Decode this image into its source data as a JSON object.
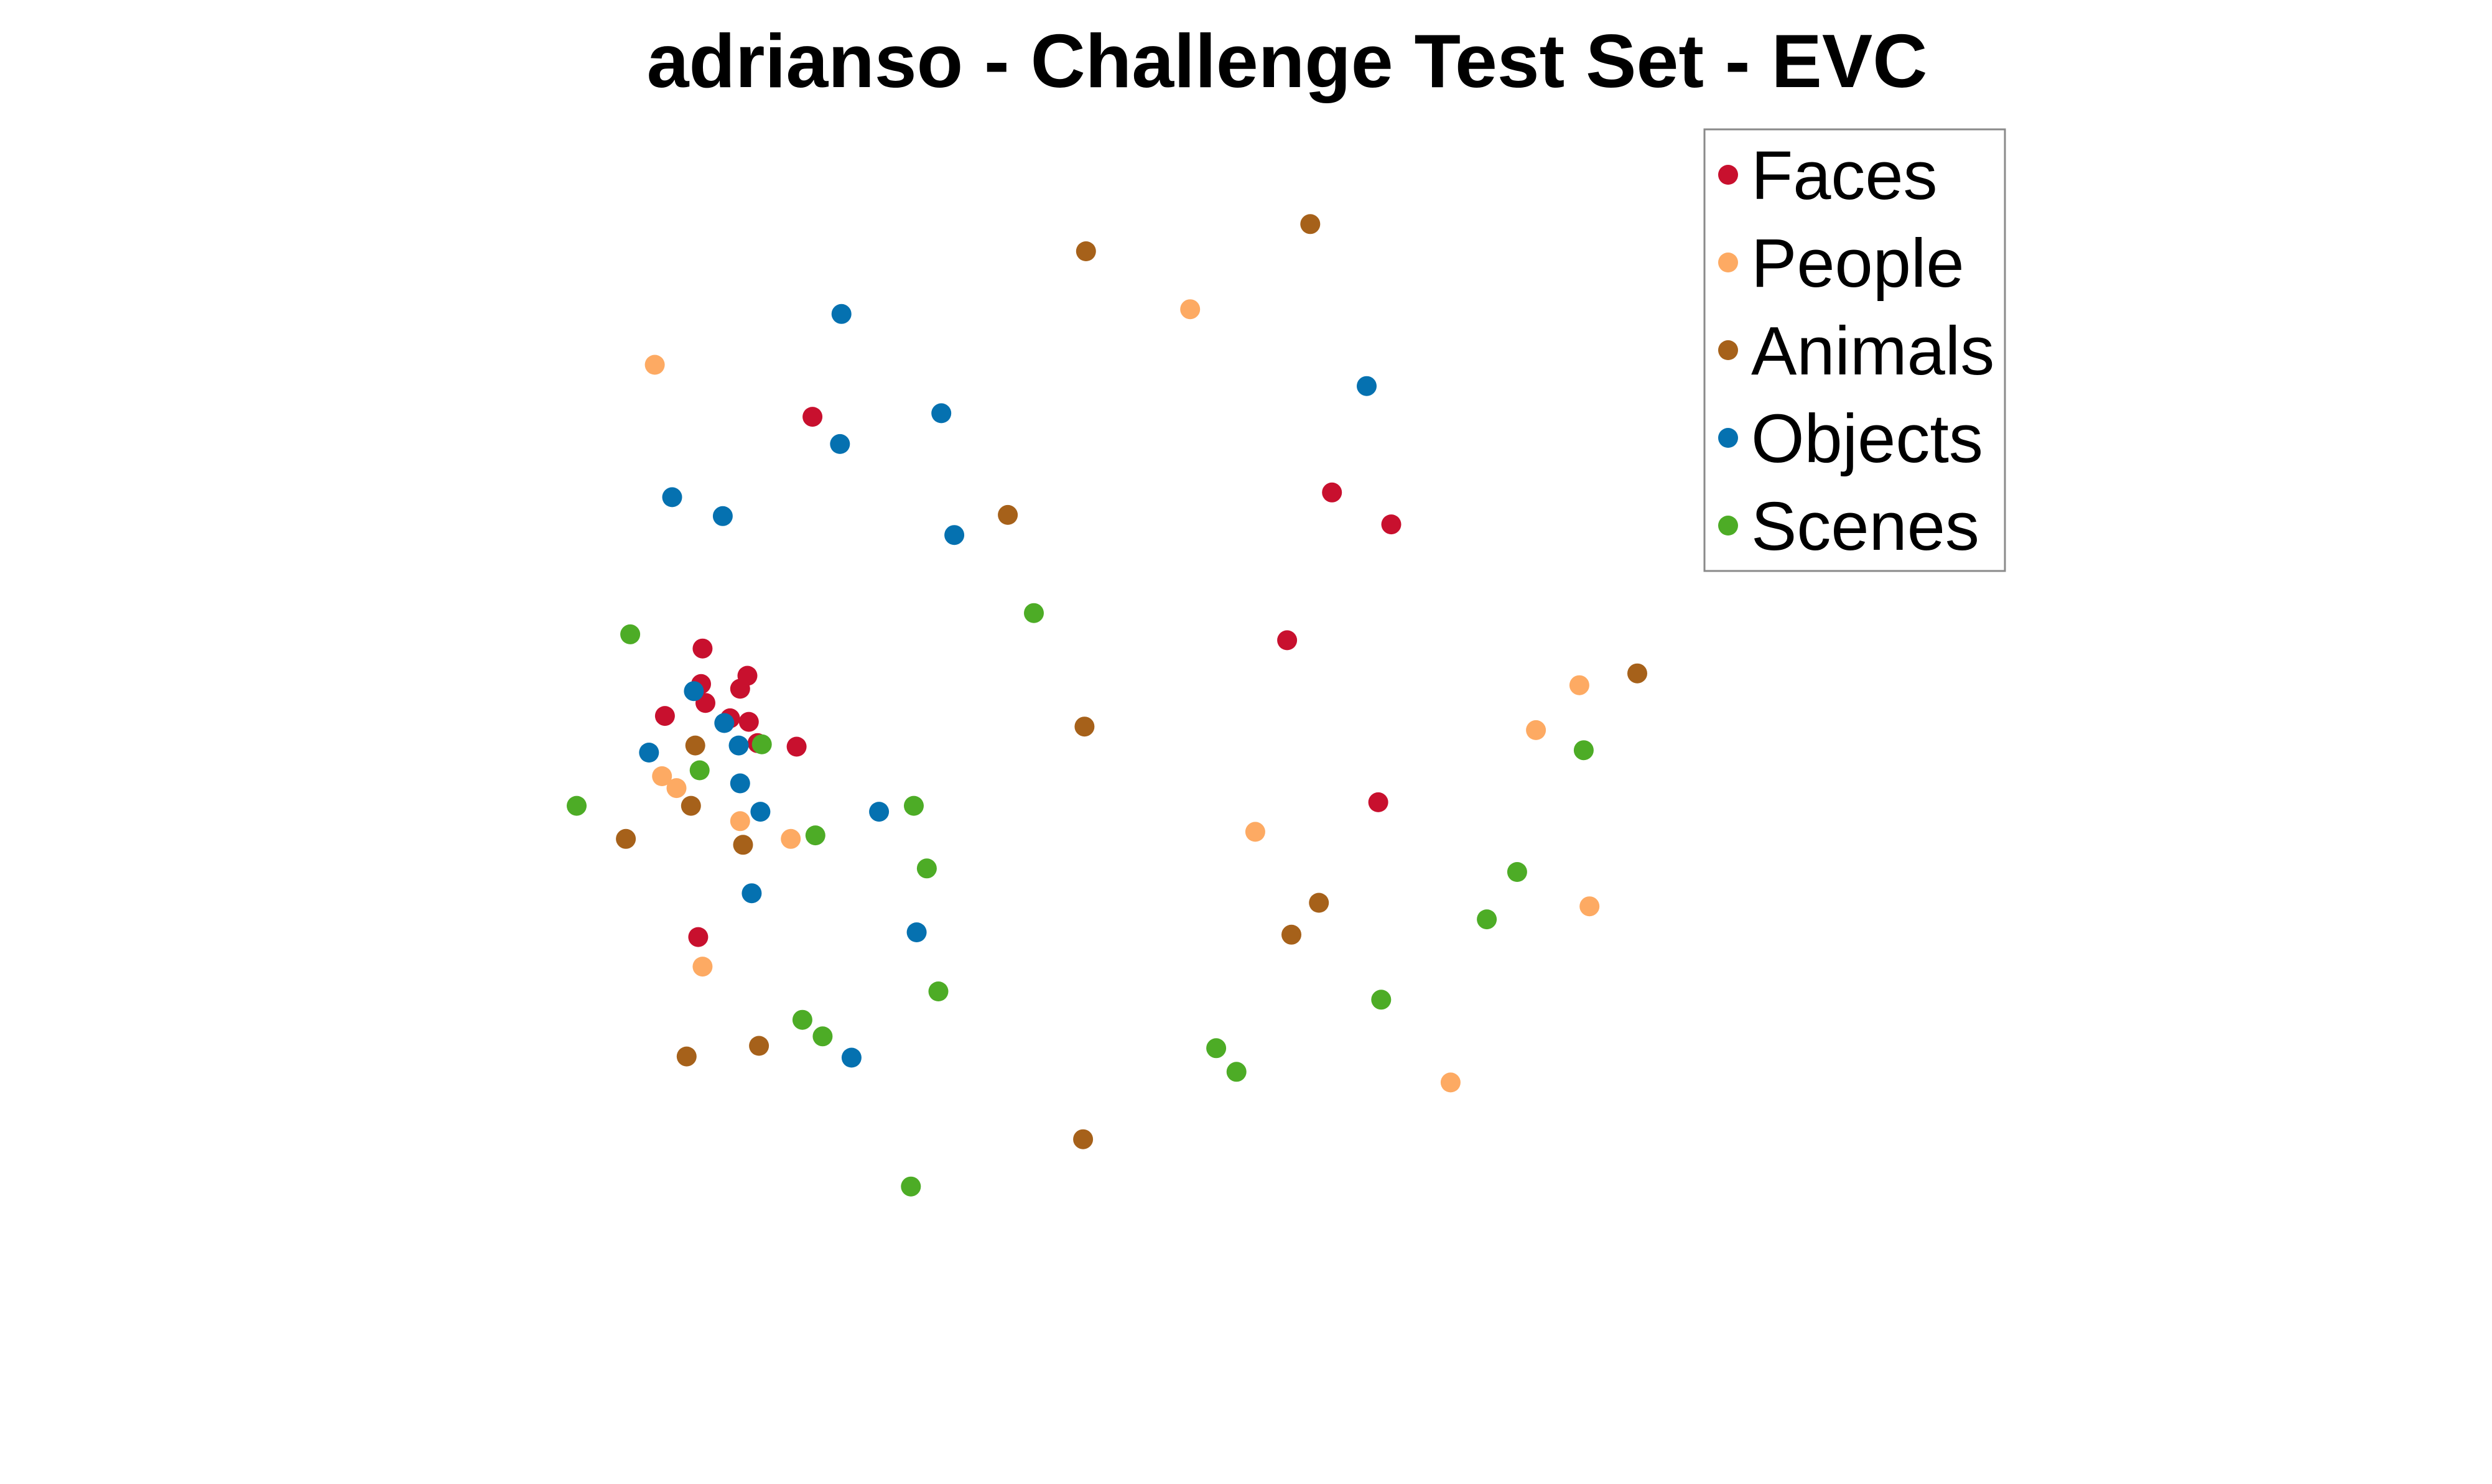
{
  "chart_data": {
    "type": "scatter",
    "title": "adrianso - Challenge Test Set - EVC",
    "xlabel": "",
    "ylabel": "",
    "axes_visible": false,
    "grid": false,
    "legend_position": "top-right",
    "xlim": [
      0,
      100
    ],
    "ylim": [
      0,
      100
    ],
    "series": [
      {
        "name": "Faces",
        "color": "#c8102e",
        "points": [
          {
            "x": 16.3,
            "y": 75.9
          },
          {
            "x": 52.2,
            "y": 69.5
          },
          {
            "x": 56.3,
            "y": 66.8
          },
          {
            "x": 8.7,
            "y": 56.3
          },
          {
            "x": 11.8,
            "y": 54.0
          },
          {
            "x": 8.6,
            "y": 53.3
          },
          {
            "x": 8.9,
            "y": 51.7
          },
          {
            "x": 6.1,
            "y": 50.6
          },
          {
            "x": 10.6,
            "y": 50.4
          },
          {
            "x": 11.3,
            "y": 52.9
          },
          {
            "x": 49.1,
            "y": 57.0
          },
          {
            "x": 11.9,
            "y": 50.1
          },
          {
            "x": 12.5,
            "y": 48.3
          },
          {
            "x": 15.2,
            "y": 48.0
          },
          {
            "x": 55.4,
            "y": 43.3
          },
          {
            "x": 8.4,
            "y": 31.9
          }
        ]
      },
      {
        "name": "People",
        "color": "#fdaa63",
        "points": [
          {
            "x": 42.4,
            "y": 85.0
          },
          {
            "x": 5.4,
            "y": 80.3
          },
          {
            "x": 69.3,
            "y": 53.2
          },
          {
            "x": 66.3,
            "y": 49.4
          },
          {
            "x": 5.9,
            "y": 45.5
          },
          {
            "x": 6.9,
            "y": 44.5
          },
          {
            "x": 11.3,
            "y": 41.7
          },
          {
            "x": 14.8,
            "y": 40.2
          },
          {
            "x": 46.9,
            "y": 40.8
          },
          {
            "x": 70.0,
            "y": 34.5
          },
          {
            "x": 8.7,
            "y": 29.4
          },
          {
            "x": 60.4,
            "y": 19.6
          }
        ]
      },
      {
        "name": "Animals",
        "color": "#a6611a",
        "points": [
          {
            "x": 50.7,
            "y": 92.2
          },
          {
            "x": 35.2,
            "y": 89.9
          },
          {
            "x": 29.8,
            "y": 67.6
          },
          {
            "x": 73.3,
            "y": 54.2
          },
          {
            "x": 35.1,
            "y": 49.7
          },
          {
            "x": 8.2,
            "y": 48.1
          },
          {
            "x": 7.9,
            "y": 43.0
          },
          {
            "x": 3.4,
            "y": 40.2
          },
          {
            "x": 11.5,
            "y": 39.7
          },
          {
            "x": 51.3,
            "y": 34.8
          },
          {
            "x": 49.4,
            "y": 32.1
          },
          {
            "x": 12.6,
            "y": 22.7
          },
          {
            "x": 7.6,
            "y": 21.8
          },
          {
            "x": 35.0,
            "y": 14.8
          }
        ]
      },
      {
        "name": "Objects",
        "color": "#0571b0",
        "points": [
          {
            "x": 18.3,
            "y": 84.6
          },
          {
            "x": 54.6,
            "y": 78.5
          },
          {
            "x": 25.2,
            "y": 76.2
          },
          {
            "x": 18.2,
            "y": 73.6
          },
          {
            "x": 6.6,
            "y": 69.1
          },
          {
            "x": 10.1,
            "y": 67.5
          },
          {
            "x": 26.1,
            "y": 65.9
          },
          {
            "x": 8.1,
            "y": 52.7
          },
          {
            "x": 10.2,
            "y": 50.0
          },
          {
            "x": 11.2,
            "y": 48.1
          },
          {
            "x": 5.0,
            "y": 47.5
          },
          {
            "x": 11.3,
            "y": 44.9
          },
          {
            "x": 12.7,
            "y": 42.5
          },
          {
            "x": 20.9,
            "y": 42.5
          },
          {
            "x": 12.1,
            "y": 35.6
          },
          {
            "x": 23.5,
            "y": 32.3
          },
          {
            "x": 19.0,
            "y": 21.7
          }
        ]
      },
      {
        "name": "Scenes",
        "color": "#4dac26",
        "points": [
          {
            "x": 31.6,
            "y": 59.3
          },
          {
            "x": 3.7,
            "y": 57.5
          },
          {
            "x": 12.8,
            "y": 48.2
          },
          {
            "x": 69.6,
            "y": 47.7
          },
          {
            "x": 8.5,
            "y": 46.0
          },
          {
            "x": 0.0,
            "y": 43.0
          },
          {
            "x": 23.3,
            "y": 43.0
          },
          {
            "x": 16.5,
            "y": 40.5
          },
          {
            "x": 24.2,
            "y": 37.7
          },
          {
            "x": 65.0,
            "y": 37.4
          },
          {
            "x": 62.9,
            "y": 33.4
          },
          {
            "x": 25.0,
            "y": 27.3
          },
          {
            "x": 15.6,
            "y": 24.9
          },
          {
            "x": 55.6,
            "y": 26.6
          },
          {
            "x": 17.0,
            "y": 23.5
          },
          {
            "x": 44.2,
            "y": 22.5
          },
          {
            "x": 45.6,
            "y": 20.5
          },
          {
            "x": 23.1,
            "y": 10.8
          }
        ]
      }
    ]
  }
}
